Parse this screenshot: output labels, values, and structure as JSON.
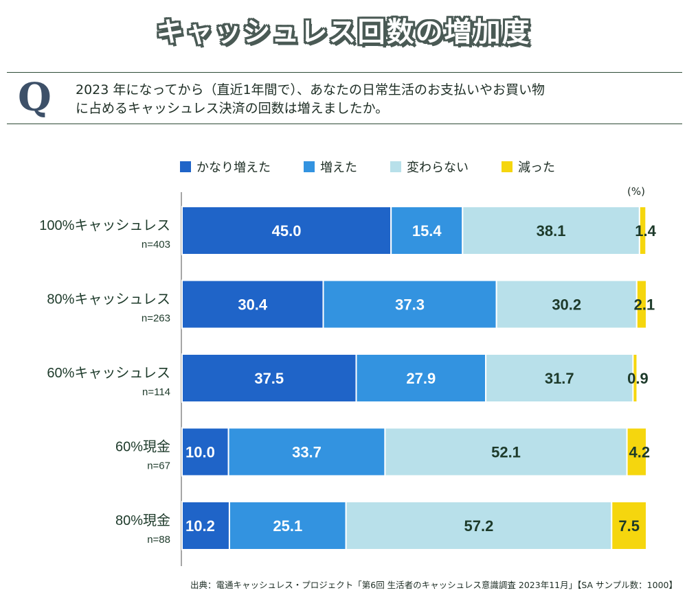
{
  "title": "キャッシュレス回数の増加度",
  "question": {
    "letter": "Q",
    "text_line1": "2023 年になってから（直近1年間で）、あなたの日常生活のお支払いやお買い物",
    "text_line2": "に占めるキャッシュレス決済の回数は増えましたか。"
  },
  "unit": "(%)",
  "source": "出典：電通キャッシュレス・プロジェクト「第6回 生活者のキャッシュレス意識調査 2023年11月」【SA サンプル数：1000】",
  "colors": {
    "increased_a_lot": "#1f64c8",
    "increased": "#3393e0",
    "no_change": "#b8e0ea",
    "decreased": "#f5d60e",
    "text_dark": "#1d3a2a",
    "axis": "#888888"
  },
  "chart_data": {
    "type": "bar",
    "orientation": "horizontal",
    "stacked": true,
    "title": "キャッシュレス回数の増加度",
    "xlim": [
      0,
      100
    ],
    "legend_position": "top",
    "categories": [
      {
        "label": "100%キャッシュレス",
        "n": "n=403"
      },
      {
        "label": "80%キャッシュレス",
        "n": "n=263"
      },
      {
        "label": "60%キャッシュレス",
        "n": "n=114"
      },
      {
        "label": "60%現金",
        "n": "n=67"
      },
      {
        "label": "80%現金",
        "n": "n=88"
      }
    ],
    "series": [
      {
        "name": "かなり増えた",
        "color_key": "increased_a_lot",
        "label_style": "light",
        "values": [
          45.0,
          30.4,
          37.5,
          10.0,
          10.2
        ],
        "labels": [
          "45.0",
          "30.4",
          "37.5",
          "10.0",
          "10.2"
        ]
      },
      {
        "name": "増えた",
        "color_key": "increased",
        "label_style": "light",
        "values": [
          15.4,
          37.3,
          27.9,
          33.7,
          25.1
        ],
        "labels": [
          "15.4",
          "37.3",
          "27.9",
          "33.7",
          "25.1"
        ]
      },
      {
        "name": "変わらない",
        "color_key": "no_change",
        "label_style": "dark",
        "values": [
          38.1,
          30.2,
          31.7,
          52.1,
          57.2
        ],
        "labels": [
          "38.1",
          "30.2",
          "31.7",
          "52.1",
          "57.2"
        ]
      },
      {
        "name": "減った",
        "color_key": "decreased",
        "label_style": "dark",
        "values": [
          1.4,
          2.1,
          0.9,
          4.2,
          7.5
        ],
        "labels": [
          "1.4",
          "2.1",
          "0.9",
          "4.2",
          "7.5"
        ]
      }
    ]
  }
}
